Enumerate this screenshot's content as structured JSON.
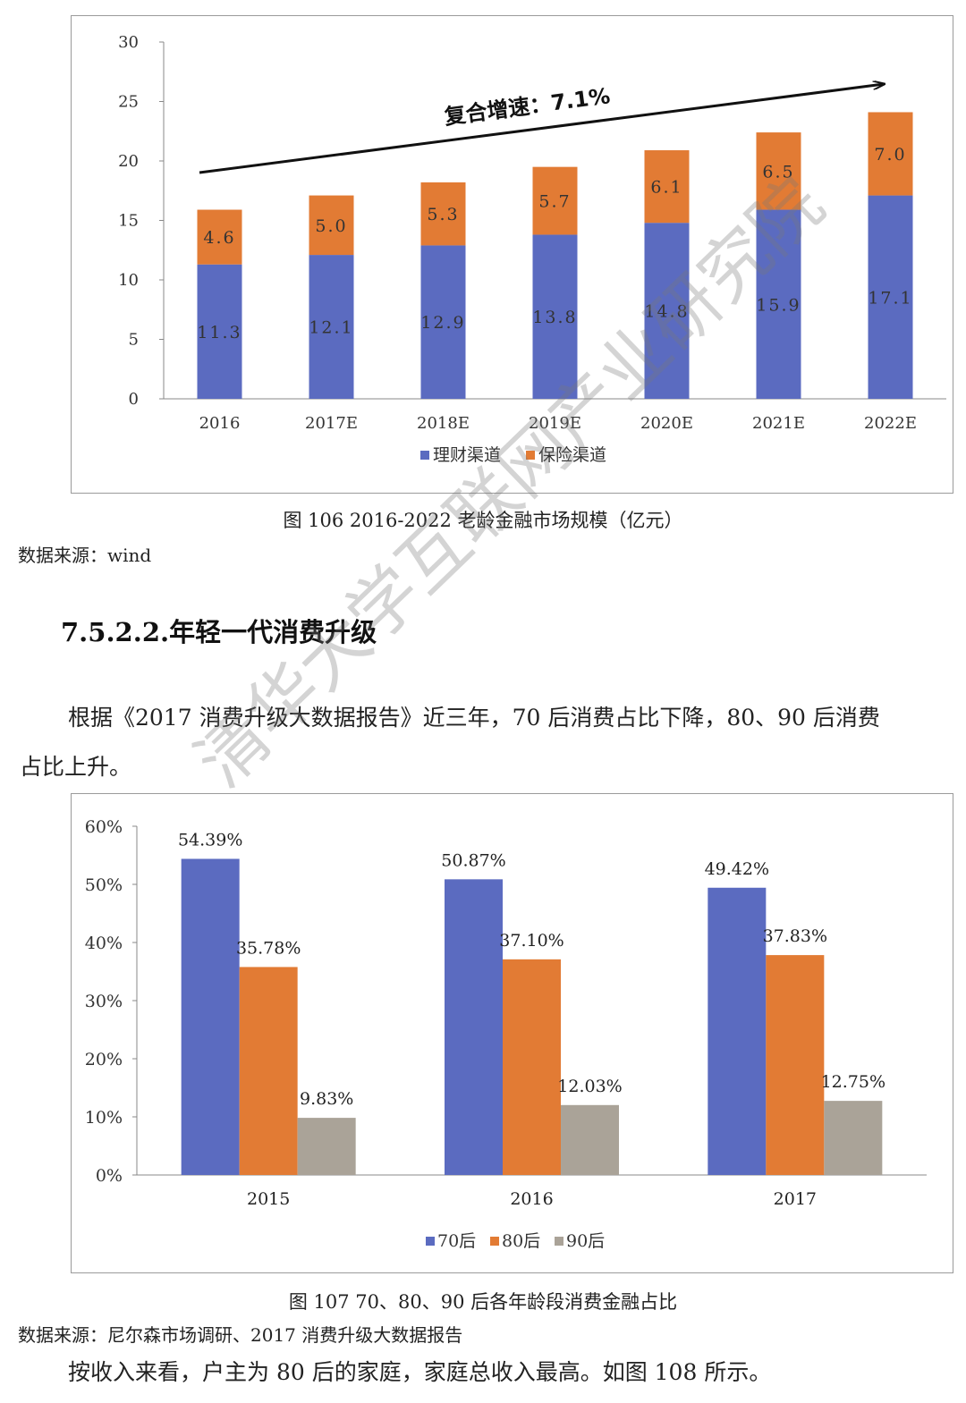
{
  "charts": {
    "market": {
      "caption": "图  106 2016-2022 老龄金融市场规模（亿元）",
      "source": "数据来源：wind",
      "arrow_label": "复合增速：7.1%"
    },
    "consumption": {
      "caption": "图  107 70、80、90 后各年龄段消费金融占比",
      "source": "数据来源：尼尔森市场调研、2017 消费升级大数据报告"
    }
  },
  "section": {
    "heading": "7.5.2.2.年轻一代消费升级",
    "para1_line1": "根据《2017 消费升级大数据报告》近三年，70 后消费占比下降，80、90 后消费",
    "para1_line2": "占比上升。",
    "para2": "按收入来看，户主为 80 后的家庭，家庭总收入最高。如图  108 所示。"
  },
  "watermark": "清华大学互联网产业研究院",
  "colors": {
    "blue": "#5b6bc0",
    "orange": "#e27b34",
    "gray": "#aaa398"
  },
  "chart_data": [
    {
      "type": "bar",
      "stacked": true,
      "categories": [
        "2016",
        "2017E",
        "2018E",
        "2019E",
        "2020E",
        "2021E",
        "2022E"
      ],
      "series": [
        {
          "name": "理财渠道",
          "values": [
            11.3,
            12.1,
            12.9,
            13.8,
            14.8,
            15.9,
            17.1
          ]
        },
        {
          "name": "保险渠道",
          "values": [
            4.6,
            5.0,
            5.3,
            5.7,
            6.1,
            6.5,
            7.0
          ]
        }
      ],
      "data_labels": [
        [
          "11.3",
          "12.1",
          "12.9",
          "13.8",
          "14.8",
          "15.9",
          "17.1"
        ],
        [
          "4.6",
          "5.0",
          "5.3",
          "5.7",
          "6.1",
          "6.5",
          "7.0"
        ]
      ],
      "yticks": [
        "0",
        "5",
        "10",
        "15",
        "20",
        "25",
        "30"
      ],
      "ylim": [
        0,
        30
      ],
      "annotation": "复合增速：7.1%",
      "legend_position": "bottom",
      "grid": false
    },
    {
      "type": "bar",
      "categories": [
        "2015",
        "2016",
        "2017"
      ],
      "series": [
        {
          "name": "70后",
          "values": [
            54.39,
            50.87,
            49.42
          ]
        },
        {
          "name": "80后",
          "values": [
            35.78,
            37.1,
            37.83
          ]
        },
        {
          "name": "90后",
          "values": [
            9.83,
            12.03,
            12.75
          ]
        }
      ],
      "data_labels": [
        [
          "54.39%",
          "50.87%",
          "49.42%"
        ],
        [
          "35.78%",
          "37.10%",
          "37.83%"
        ],
        [
          "9.83%",
          "12.03%",
          "12.75%"
        ]
      ],
      "yticks": [
        "0%",
        "10%",
        "20%",
        "30%",
        "40%",
        "50%",
        "60%"
      ],
      "ylim": [
        0,
        60
      ],
      "legend_position": "bottom",
      "grid": false
    }
  ]
}
